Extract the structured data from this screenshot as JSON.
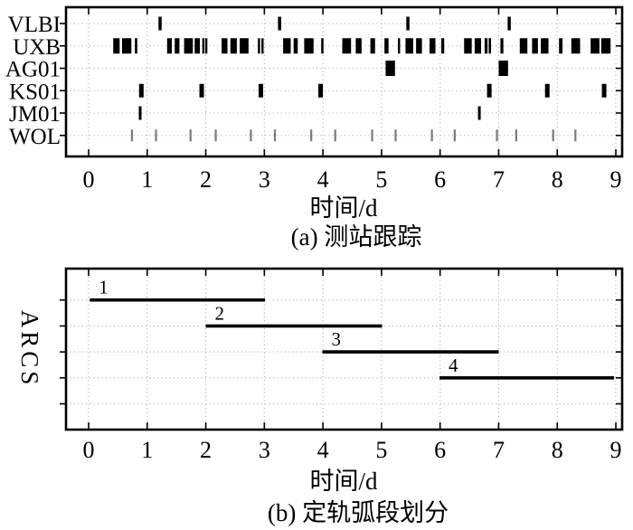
{
  "colors": {
    "axis": "#000000",
    "grid": "#b3b3b3",
    "mark": "#000000",
    "wol_mark": "#7a7a7a",
    "background": "#ffffff"
  },
  "chart_data": [
    {
      "type": "scatter",
      "title": "(a) 测站跟踪",
      "xlabel": "时间/d",
      "xlim": [
        -0.39,
        9.11
      ],
      "x_ticks": [
        0,
        1,
        2,
        3,
        4,
        5,
        6,
        7,
        8,
        9
      ],
      "grid": "dotted",
      "categories": [
        "VLBI",
        "UXB",
        "AG01",
        "KS01",
        "JM01",
        "WOL"
      ],
      "series": [
        {
          "name": "VLBI",
          "style": "tick",
          "times": [
            1.22,
            3.26,
            5.45,
            7.18
          ]
        },
        {
          "name": "UXB",
          "style": "block",
          "intervals": [
            [
              0.42,
              0.53
            ],
            [
              0.57,
              0.73
            ],
            [
              0.79,
              0.83
            ],
            [
              1.34,
              1.42
            ],
            [
              1.47,
              1.55
            ],
            [
              1.63,
              1.78
            ],
            [
              1.81,
              1.9
            ],
            [
              1.94,
              1.97
            ],
            [
              1.99,
              2.02
            ],
            [
              2.27,
              2.37
            ],
            [
              2.42,
              2.53
            ],
            [
              2.58,
              2.73
            ],
            [
              2.89,
              2.92
            ],
            [
              2.95,
              2.98
            ],
            [
              3.32,
              3.45
            ],
            [
              3.5,
              3.57
            ],
            [
              3.68,
              3.84
            ],
            [
              3.97,
              4.01
            ],
            [
              4.33,
              4.48
            ],
            [
              4.56,
              4.66
            ],
            [
              4.81,
              4.89
            ],
            [
              5.05,
              5.12
            ],
            [
              5.28,
              5.3
            ],
            [
              5.41,
              5.54
            ],
            [
              5.59,
              5.69
            ],
            [
              5.82,
              5.92
            ],
            [
              6.02,
              6.07
            ],
            [
              6.41,
              6.54
            ],
            [
              6.59,
              6.7
            ],
            [
              6.76,
              6.81
            ],
            [
              6.83,
              6.87
            ],
            [
              7.03,
              7.08
            ],
            [
              7.36,
              7.49
            ],
            [
              7.57,
              7.67
            ],
            [
              7.72,
              7.85
            ],
            [
              8.03,
              8.09
            ],
            [
              8.24,
              8.39
            ],
            [
              8.57,
              8.72
            ],
            [
              8.75,
              8.91
            ]
          ]
        },
        {
          "name": "AG01",
          "style": "block",
          "intervals": [
            [
              5.07,
              5.23
            ],
            [
              7.0,
              7.16
            ]
          ]
        },
        {
          "name": "KS01",
          "style": "tick",
          "times": [
            0.9,
            1.93,
            2.94,
            3.96,
            6.84,
            7.83,
            8.8
          ]
        },
        {
          "name": "JM01",
          "style": "tick",
          "times": [
            0.88,
            6.67
          ]
        },
        {
          "name": "WOL",
          "style": "tick",
          "color": "#7a7a7a",
          "times": [
            0.74,
            1.15,
            1.74,
            2.17,
            2.77,
            3.18,
            3.8,
            4.21,
            4.84,
            5.24,
            5.86,
            6.25,
            6.97,
            7.3,
            7.93,
            8.31
          ]
        }
      ]
    },
    {
      "type": "line",
      "title": "(b) 定轨弧段划分",
      "xlabel": "时间/d",
      "ylabel": "ARCS",
      "xlim": [
        -0.39,
        9.11
      ],
      "x_ticks": [
        0,
        1,
        2,
        3,
        4,
        5,
        6,
        7,
        8,
        9
      ],
      "grid": "dotted",
      "rows_total": 5,
      "segments": [
        {
          "label": "1",
          "row": 1,
          "start": 0.02,
          "end": 3.01
        },
        {
          "label": "2",
          "row": 2,
          "start": 2.0,
          "end": 5.01
        },
        {
          "label": "3",
          "row": 3,
          "start": 3.99,
          "end": 7.0
        },
        {
          "label": "4",
          "row": 4,
          "start": 5.99,
          "end": 8.97
        }
      ]
    }
  ]
}
